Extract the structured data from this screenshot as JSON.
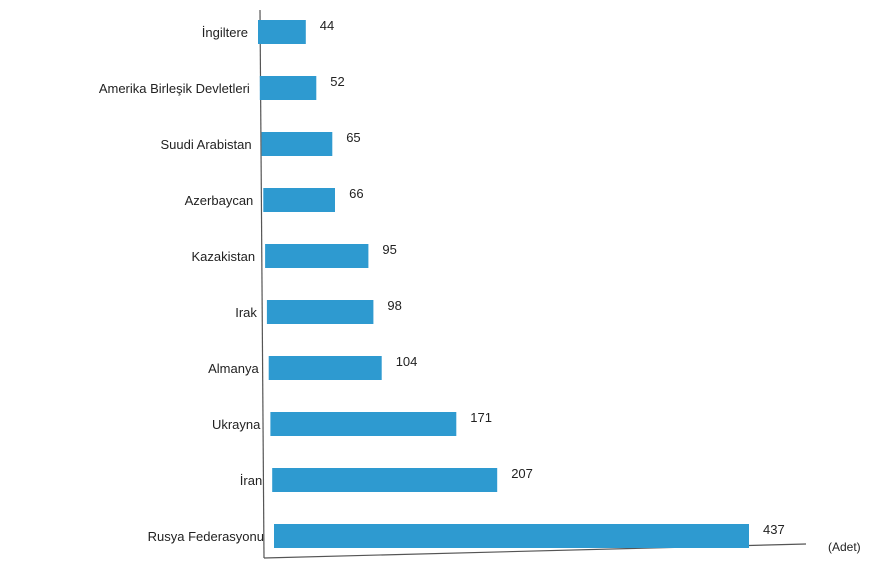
{
  "chart_data": {
    "type": "bar",
    "orientation": "horizontal",
    "categories": [
      "İngiltere",
      "Amerika Birleşik Devletleri",
      "Suudi Arabistan",
      "Azerbaycan",
      "Kazakistan",
      "Irak",
      "Almanya",
      "Ukrayna",
      "İran",
      "Rusya Federasyonu"
    ],
    "values": [
      44,
      52,
      65,
      66,
      95,
      98,
      104,
      171,
      207,
      437
    ],
    "data_labels": [
      "44",
      "52",
      "65",
      "66",
      "95",
      "98",
      "104",
      "171",
      "207",
      "437"
    ],
    "unit_label": "(Adet)",
    "title": "",
    "xlabel": "",
    "ylabel": "",
    "xlim": [
      0,
      480
    ],
    "grid": false,
    "legend": "none",
    "bar_color": "#2e9ad0"
  }
}
